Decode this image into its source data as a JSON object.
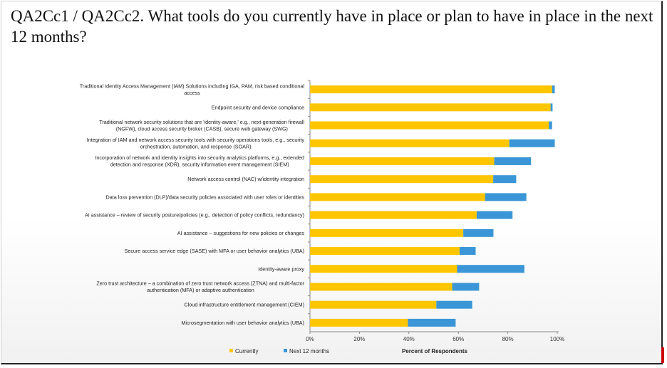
{
  "title": "QA2Cc1 / QA2Cc2. What tools do you currently have in place or plan to have in place in the next 12 months?",
  "chart_data": {
    "type": "bar",
    "orientation": "horizontal",
    "stacked": true,
    "categories": [
      [
        "Traditional Identity Access Management (IAM) Solutions including IGA, PAM, risk based conditional",
        "access"
      ],
      [
        "Endpoint security and device compliance"
      ],
      [
        "Traditional network security solutions that are 'identity-aware,' e.g., next-generation firewall",
        "(NGFW), cloud access security broker (CASB), secure web gateway (SWG)"
      ],
      [
        "Integration of IAM and network access security tools with security operations tools, e.g., security",
        "orchestration, automation, and response (SOAR)"
      ],
      [
        "Incorporation of network and identity insights into security analytics platforms, e.g., extended",
        "detection and response (XDR), security information event management (SIEM)"
      ],
      [
        "Network access control (NAC) w/identity integration"
      ],
      [
        "Data loss prevention (DLP)/data security policies associated with user roles or identities"
      ],
      [
        "AI assistance – review of security posture/policies (e.g., detection of policy conflicts, redundancy)"
      ],
      [
        "AI assistance – suggestions for new policies or changes"
      ],
      [
        "Secure access service edge (SASE) with MFA or user behavior analytics (UBA)"
      ],
      [
        "Identity-aware proxy"
      ],
      [
        "Zero trust architecture – a combination of zero trust network access (ZTNA) and multi-factor",
        "authentication (MFA) or adaptive authentication"
      ],
      [
        "Cloud infrastructure entitlement management (CIEM)"
      ],
      [
        "Microsegmentation with user behavior analytics (UBA)"
      ]
    ],
    "series": [
      {
        "name": "Currently",
        "color": "#FFC600",
        "values": [
          97.9,
          97.3,
          96.6,
          80.6,
          74.5,
          74.1,
          70.8,
          67.4,
          62.0,
          60.5,
          59.5,
          57.5,
          51.1,
          39.6
        ]
      },
      {
        "name": "Next 12 months",
        "color": "#3A96D6",
        "values": [
          1.1,
          0.8,
          1.3,
          18.4,
          14.9,
          9.3,
          16.7,
          14.5,
          12.2,
          6.5,
          27.2,
          10.9,
          14.5,
          19.3
        ]
      }
    ],
    "xlabel": "Percent of Respondents",
    "xlim": [
      0,
      100
    ],
    "xticks": [
      "0%",
      "20%",
      "40%",
      "60%",
      "80%",
      "100%"
    ],
    "grid": false,
    "legend": "bottom-left"
  }
}
